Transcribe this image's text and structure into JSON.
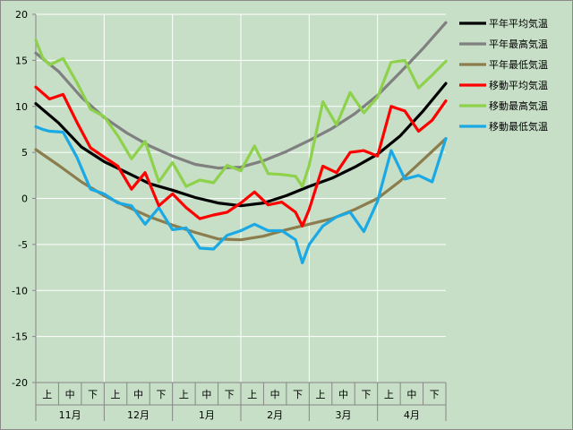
{
  "chart_data": {
    "type": "line",
    "title": "",
    "xlabel": "",
    "ylabel": "",
    "ylim": [
      -20,
      20
    ],
    "yticks": [
      -20,
      -15,
      -10,
      -5,
      0,
      5,
      10,
      15,
      20
    ],
    "xlim": [
      0,
      180
    ],
    "grid": true,
    "legend_position": "right",
    "months": [
      "11月",
      "12月",
      "1月",
      "2月",
      "3月",
      "4月"
    ],
    "decades": [
      "上",
      "中",
      "下"
    ],
    "series": [
      {
        "name": "平年平均気温",
        "color": "#000000",
        "x": [
          0,
          10,
          20,
          30,
          40,
          50,
          60,
          70,
          80,
          90,
          100,
          110,
          120,
          130,
          140,
          150,
          160,
          170,
          180
        ],
        "y": [
          10.3,
          8.2,
          5.6,
          4.0,
          2.8,
          1.6,
          0.9,
          0.1,
          -0.5,
          -0.8,
          -0.5,
          0.3,
          1.3,
          2.2,
          3.4,
          4.8,
          6.8,
          9.5,
          12.5
        ]
      },
      {
        "name": "平年最高気温",
        "color": "#808080",
        "x": [
          0,
          10,
          20,
          30,
          40,
          50,
          60,
          70,
          80,
          90,
          100,
          110,
          120,
          130,
          140,
          150,
          160,
          170,
          180
        ],
        "y": [
          15.8,
          13.8,
          11.0,
          8.8,
          7.1,
          5.7,
          4.6,
          3.7,
          3.3,
          3.4,
          4.1,
          5.1,
          6.3,
          7.6,
          9.2,
          11.2,
          13.7,
          16.3,
          19.1
        ]
      },
      {
        "name": "平年最低気温",
        "color": "#8b7d4d",
        "x": [
          0,
          10,
          20,
          30,
          40,
          50,
          60,
          70,
          80,
          90,
          100,
          110,
          120,
          130,
          140,
          150,
          160,
          170,
          180
        ],
        "y": [
          5.3,
          3.6,
          1.8,
          0.3,
          -0.9,
          -2.0,
          -2.9,
          -3.7,
          -4.4,
          -4.5,
          -4.1,
          -3.4,
          -2.8,
          -2.2,
          -1.2,
          0.0,
          1.9,
          4.2,
          6.5
        ]
      },
      {
        "name": "移動平均気温",
        "color": "#ff0000",
        "x": [
          0,
          6,
          12,
          18,
          24,
          30,
          36,
          42,
          48,
          54,
          60,
          66,
          72,
          78,
          84,
          90,
          96,
          102,
          108,
          114,
          117,
          120,
          126,
          132,
          138,
          144,
          150,
          156,
          162,
          168,
          174,
          180
        ],
        "y": [
          12.1,
          10.8,
          11.3,
          8.3,
          5.5,
          4.5,
          3.5,
          1.0,
          2.8,
          -0.8,
          0.5,
          -1.0,
          -2.2,
          -1.8,
          -1.5,
          -0.5,
          0.7,
          -0.7,
          -0.4,
          -1.5,
          -3.0,
          -1.2,
          3.5,
          2.8,
          5.0,
          5.2,
          4.6,
          10.0,
          9.5,
          7.3,
          8.5,
          10.6
        ]
      },
      {
        "name": "移動最高気温",
        "color": "#8ed14b",
        "x": [
          0,
          3,
          6,
          12,
          18,
          24,
          30,
          36,
          42,
          48,
          54,
          60,
          66,
          72,
          78,
          84,
          90,
          96,
          102,
          108,
          114,
          117,
          120,
          126,
          132,
          138,
          144,
          150,
          156,
          162,
          168,
          174,
          180
        ],
        "y": [
          17.2,
          15.3,
          14.5,
          15.2,
          12.6,
          9.7,
          8.9,
          6.8,
          4.3,
          6.2,
          1.8,
          3.9,
          1.3,
          2.0,
          1.7,
          3.6,
          3.0,
          5.7,
          2.7,
          2.6,
          2.4,
          1.3,
          3.6,
          10.5,
          8.0,
          11.5,
          9.3,
          11.0,
          14.8,
          15.0,
          12.0,
          13.4,
          14.9
        ]
      },
      {
        "name": "移動最低気温",
        "color": "#1ba9e6",
        "x": [
          0,
          3,
          6,
          12,
          18,
          24,
          30,
          36,
          42,
          48,
          54,
          60,
          66,
          72,
          78,
          84,
          90,
          96,
          102,
          108,
          114,
          117,
          120,
          126,
          132,
          138,
          144,
          150,
          156,
          162,
          168,
          174,
          180
        ],
        "y": [
          7.8,
          7.5,
          7.3,
          7.2,
          4.5,
          1.0,
          0.5,
          -0.5,
          -0.8,
          -2.8,
          -1.0,
          -3.4,
          -3.2,
          -5.4,
          -5.5,
          -4.0,
          -3.5,
          -2.8,
          -3.5,
          -3.5,
          -4.5,
          -7.0,
          -5.0,
          -3.0,
          -2.0,
          -1.5,
          -3.6,
          -0.3,
          5.2,
          2.1,
          2.5,
          1.8,
          6.5
        ]
      }
    ]
  }
}
